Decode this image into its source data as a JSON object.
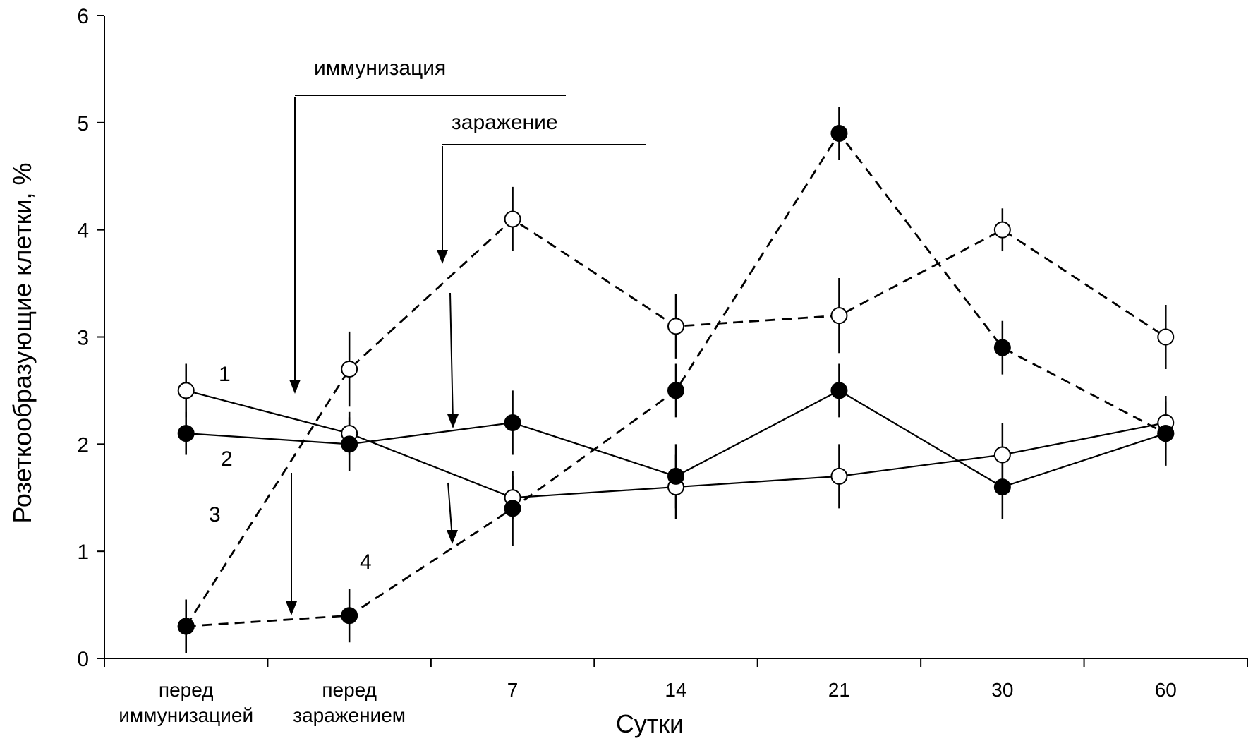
{
  "chart_data": {
    "type": "line",
    "title": "",
    "xlabel": "Сутки",
    "ylabel": "Розеткообразующие клетки, %",
    "ylim": [
      0,
      6
    ],
    "yticks": [
      0,
      1,
      2,
      3,
      4,
      5,
      6
    ],
    "grid": false,
    "categories": [
      [
        "перед",
        "иммунизацией"
      ],
      [
        "перед",
        "заражением"
      ],
      [
        "7"
      ],
      [
        "14"
      ],
      [
        "21"
      ],
      [
        "30"
      ],
      [
        "60"
      ]
    ],
    "series": [
      {
        "label": "1",
        "marker": "open-circle",
        "line": "solid",
        "values": [
          2.5,
          2.1,
          1.5,
          1.6,
          1.7,
          1.9,
          2.2
        ],
        "errors": [
          0.25,
          0.2,
          0.2,
          0.3,
          0.3,
          0.3,
          0.25
        ]
      },
      {
        "label": "2",
        "marker": "filled-circle",
        "line": "solid",
        "values": [
          2.1,
          2.0,
          2.2,
          1.7,
          2.5,
          1.6,
          2.1
        ],
        "errors": [
          0.2,
          0.25,
          0.3,
          0.3,
          0.25,
          0.3,
          0.3
        ]
      },
      {
        "label": "3",
        "marker": "open-circle",
        "line": "dashed",
        "values": [
          0.3,
          2.7,
          4.1,
          3.1,
          3.2,
          4.0,
          3.0
        ],
        "errors": [
          0.25,
          0.35,
          0.3,
          0.3,
          0.35,
          0.2,
          0.3
        ]
      },
      {
        "label": "4",
        "marker": "filled-circle",
        "line": "dashed",
        "values": [
          0.3,
          0.4,
          1.4,
          2.5,
          4.9,
          2.9,
          2.1
        ],
        "errors": [
          0.25,
          0.25,
          0.35,
          0.25,
          0.25,
          0.25,
          0.3
        ]
      }
    ],
    "annotations": [
      {
        "text": "иммунизация"
      },
      {
        "text": "заражение"
      }
    ]
  }
}
